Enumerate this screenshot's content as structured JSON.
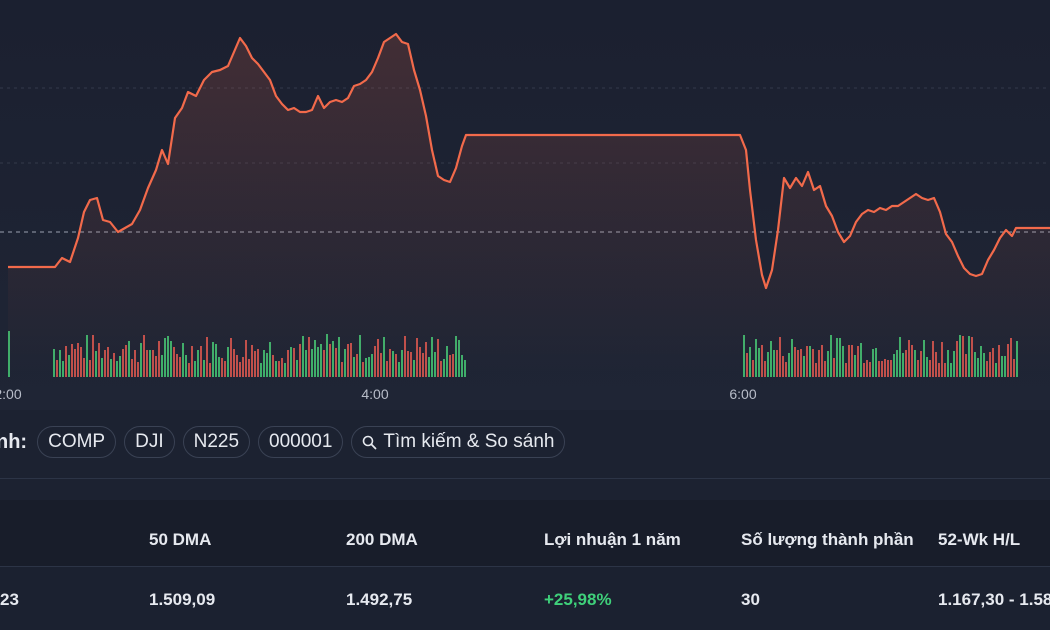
{
  "chart": {
    "x_ticks": [
      "2:00",
      "4:00",
      "6:00"
    ],
    "line_color": "#f26a4b",
    "up_volume_color": "#3fae6a",
    "down_volume_color": "#c0504b"
  },
  "compare": {
    "label": "nh:",
    "chips": [
      "COMP",
      "DJI",
      "N225",
      "000001"
    ],
    "search_label": "Tìm kiếm & So sánh"
  },
  "stats": {
    "headers": [
      "",
      "50 DMA",
      "200 DMA",
      "Lợi nhuận 1 năm",
      "Số lượng thành phần",
      "52-Wk H/L"
    ],
    "values": [
      "23",
      "1.509,09",
      "1.492,75",
      "+25,98%",
      "30",
      "1.167,30 - 1.58"
    ],
    "positive_color": "#3fd07a"
  }
}
